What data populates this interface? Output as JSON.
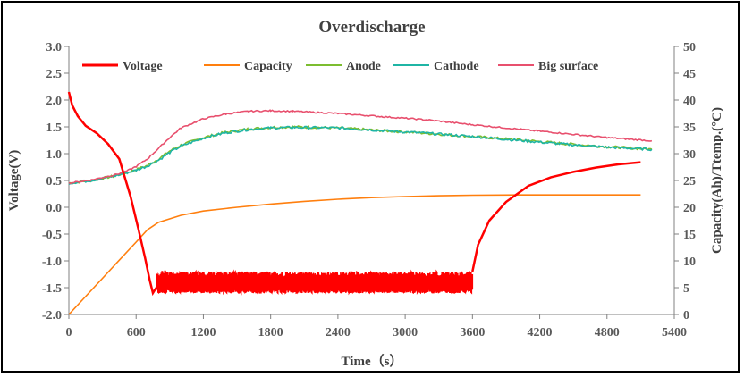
{
  "chart_data": {
    "type": "line",
    "title": "Overdischarge",
    "xlabel": "Time（s）",
    "ylabel_left": "Voltage(V)",
    "ylabel_right": "Capacity(Ah)/Ttemp.(°C)",
    "xlim": [
      0,
      5400
    ],
    "ylim_left": [
      -2.0,
      3.0
    ],
    "ylim_right": [
      0,
      50
    ],
    "x_ticks": [
      "0",
      "600",
      "1200",
      "1800",
      "2400",
      "3000",
      "3600",
      "4200",
      "4800",
      "5400"
    ],
    "y_left_ticks": [
      "3.0",
      "2.5",
      "2.0",
      "1.5",
      "1.0",
      "0.5",
      "0.0",
      "-0.5",
      "-1.0",
      "-1.5",
      "-2.0"
    ],
    "y_right_ticks": [
      "50",
      "45",
      "40",
      "35",
      "30",
      "25",
      "20",
      "15",
      "10",
      "5",
      "0"
    ],
    "grid": false,
    "legend_position": "top",
    "series": [
      {
        "name": "Voltage",
        "axis": "left",
        "color": "#ff0000",
        "x": [
          0,
          30,
          80,
          150,
          250,
          350,
          450,
          550,
          620,
          680,
          720,
          750,
          780
        ],
        "y": [
          2.15,
          1.9,
          1.7,
          1.52,
          1.38,
          1.18,
          0.9,
          0.2,
          -0.4,
          -0.95,
          -1.35,
          -1.6,
          -1.5
        ],
        "noise_band": {
          "x_start": 780,
          "x_end": 3600,
          "y_low": -1.6,
          "y_high": -1.2
        },
        "x_recovery": [
          3600,
          3650,
          3750,
          3900,
          4100,
          4300,
          4500,
          4700,
          4900,
          5100
        ],
        "y_recovery": [
          -1.2,
          -0.7,
          -0.25,
          0.1,
          0.4,
          0.56,
          0.66,
          0.74,
          0.8,
          0.84
        ]
      },
      {
        "name": "Capacity",
        "axis": "right",
        "color": "#ff7f0e",
        "x": [
          0,
          200,
          400,
          600,
          700,
          800,
          1000,
          1200,
          1500,
          1800,
          2100,
          2400,
          2700,
          3000,
          3300,
          3600,
          4000,
          4500,
          5000,
          5100
        ],
        "y": [
          0,
          4.5,
          9,
          13.5,
          15.8,
          17.2,
          18.5,
          19.3,
          20.0,
          20.6,
          21.1,
          21.5,
          21.8,
          22.0,
          22.15,
          22.25,
          22.3,
          22.3,
          22.3,
          22.3
        ]
      },
      {
        "name": "Anode",
        "axis": "right",
        "color": "#7cbd30",
        "x": [
          0,
          200,
          400,
          600,
          700,
          800,
          900,
          1000,
          1200,
          1400,
          1600,
          1800,
          2000,
          2400,
          2800,
          3200,
          3600,
          4000,
          4400,
          4800,
          5200
        ],
        "y": [
          24.5,
          25.0,
          25.8,
          27.0,
          27.8,
          29.0,
          30.5,
          31.6,
          33.0,
          34.0,
          34.6,
          34.9,
          35.0,
          34.8,
          34.3,
          33.8,
          33.2,
          32.6,
          31.9,
          31.3,
          30.8
        ]
      },
      {
        "name": "Cathode",
        "axis": "right",
        "color": "#1fb5a5",
        "x": [
          0,
          200,
          400,
          600,
          700,
          800,
          900,
          1000,
          1200,
          1400,
          1600,
          1800,
          2000,
          2400,
          2800,
          3200,
          3600,
          4000,
          4400,
          4800,
          5200
        ],
        "y": [
          24.5,
          25.0,
          25.8,
          26.9,
          27.7,
          28.8,
          30.2,
          31.4,
          32.9,
          33.9,
          34.5,
          34.8,
          34.9,
          34.8,
          34.3,
          33.8,
          33.2,
          32.5,
          31.8,
          31.2,
          30.8
        ]
      },
      {
        "name": "Big surface",
        "axis": "right",
        "color": "#e8506e",
        "x": [
          0,
          200,
          400,
          500,
          600,
          700,
          800,
          900,
          1000,
          1200,
          1400,
          1600,
          1800,
          2000,
          2400,
          2800,
          3200,
          3600,
          4000,
          4400,
          4800,
          5200
        ],
        "y": [
          24.5,
          25.1,
          26.0,
          26.6,
          27.6,
          29.0,
          31.0,
          33.0,
          34.8,
          36.5,
          37.4,
          37.9,
          38.0,
          37.9,
          37.5,
          36.9,
          36.3,
          35.4,
          34.6,
          33.8,
          33.0,
          32.4
        ]
      }
    ]
  }
}
